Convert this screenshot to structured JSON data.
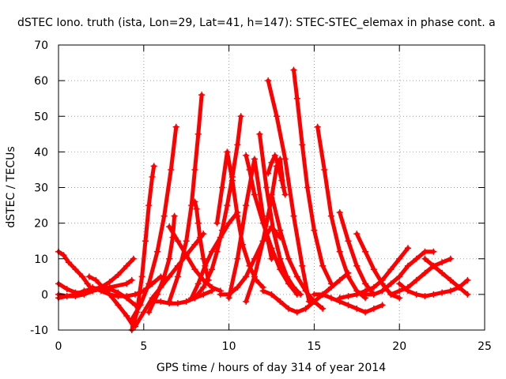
{
  "chart_data": {
    "type": "scatter",
    "title": "dSTEC Iono. truth (ista, Lon=29, Lat=41, h=147): STEC-STEC_elemax in phase cont. a",
    "xlabel": "GPS time / hours of day 314 of year 2014",
    "ylabel": "dSTEC  / TECUs",
    "xlim": [
      0,
      25
    ],
    "ylim": [
      -10,
      70
    ],
    "xticks": [
      "0",
      "5",
      "10",
      "15",
      "20",
      "25"
    ],
    "yticks": [
      "-10",
      "0",
      "10",
      "20",
      "30",
      "40",
      "50",
      "60",
      "70"
    ],
    "grid": true,
    "marker": "+",
    "color": "#ff0000",
    "series": [
      {
        "x": [
          0.0,
          0.3,
          0.6,
          1.0,
          1.4,
          1.7,
          2.0
        ],
        "y": [
          12,
          11,
          9,
          7,
          5,
          3,
          1
        ]
      },
      {
        "x": [
          0.0,
          0.5,
          1.0,
          1.5,
          2.0,
          2.5,
          3.0,
          3.5,
          4.0,
          4.4
        ],
        "y": [
          3,
          1.5,
          0.5,
          0.5,
          1,
          2,
          3.5,
          5.5,
          8,
          10
        ]
      },
      {
        "x": [
          0.0,
          0.5,
          1.0,
          1.5,
          2.0,
          2.5,
          3.0,
          3.5,
          4.0,
          4.5
        ],
        "y": [
          -1,
          -0.5,
          0,
          1,
          1.5,
          2,
          1.5,
          0.5,
          -1,
          -3
        ]
      },
      {
        "x": [
          0.0,
          0.5,
          1.0,
          1.5,
          2.0,
          3.0,
          4.0,
          4.3
        ],
        "y": [
          0,
          -0.5,
          -0.5,
          0,
          1,
          2,
          3,
          4
        ]
      },
      {
        "x": [
          1.8,
          2.2,
          2.6,
          3.0,
          3.5,
          4.0,
          4.4
        ],
        "y": [
          5,
          4,
          2,
          0,
          -3,
          -6,
          -9
        ]
      },
      {
        "x": [
          2.0,
          2.5,
          3.0,
          3.5,
          4.0,
          4.5,
          5.0,
          5.5,
          6.0
        ],
        "y": [
          2,
          1,
          0,
          -0.5,
          -0.5,
          0,
          1,
          3,
          5
        ]
      },
      {
        "x": [
          4.3,
          4.6,
          4.9,
          5.1,
          5.3,
          5.5,
          5.6
        ],
        "y": [
          -10,
          -5,
          5,
          15,
          25,
          33,
          36
        ]
      },
      {
        "x": [
          4.5,
          5.0,
          5.5,
          6.0,
          6.5,
          7.0,
          7.5,
          8.0,
          8.5
        ],
        "y": [
          -9,
          -5,
          -1,
          2,
          5,
          8,
          11,
          14,
          17
        ]
      },
      {
        "x": [
          4.3,
          4.8,
          5.3,
          5.8,
          6.2,
          6.6,
          6.9
        ],
        "y": [
          -7,
          -3,
          3,
          12,
          22,
          35,
          47
        ]
      },
      {
        "x": [
          5.3,
          5.8,
          6.2,
          6.5,
          6.7,
          6.8
        ],
        "y": [
          -5,
          0,
          5,
          10,
          16,
          22
        ]
      },
      {
        "x": [
          6.5,
          7.0,
          7.5,
          8.0,
          8.5,
          9.0,
          9.5
        ],
        "y": [
          19,
          15,
          11,
          7,
          4,
          2,
          1
        ]
      },
      {
        "x": [
          5.5,
          6.0,
          6.5,
          7.0,
          7.5,
          8.0,
          8.5,
          9.0
        ],
        "y": [
          -2,
          -2,
          -2.5,
          -2.5,
          -2,
          -1,
          0,
          1
        ]
      },
      {
        "x": [
          6.5,
          7.0,
          7.5,
          7.8,
          8.0,
          8.2,
          8.4
        ],
        "y": [
          -2,
          5,
          15,
          25,
          35,
          45,
          56
        ]
      },
      {
        "x": [
          8.0,
          8.1,
          8.2,
          8.3,
          8.5,
          8.8
        ],
        "y": [
          26,
          24,
          20,
          16,
          10,
          4
        ]
      },
      {
        "x": [
          7.8,
          8.2,
          8.6,
          9.0,
          9.5,
          10.0,
          10.5
        ],
        "y": [
          -1,
          3,
          8,
          12,
          16,
          20,
          23
        ]
      },
      {
        "x": [
          8.0,
          8.5,
          9.0,
          9.3,
          9.6,
          9.9,
          10.2,
          10.5,
          10.7
        ],
        "y": [
          -1,
          2,
          7,
          12,
          18,
          25,
          33,
          42,
          50
        ]
      },
      {
        "x": [
          9.3,
          9.6,
          9.9,
          10.2,
          10.5,
          10.8,
          11.2,
          11.6,
          12.0
        ],
        "y": [
          20,
          30,
          40,
          32,
          22,
          14,
          8,
          4,
          2
        ]
      },
      {
        "x": [
          9.5,
          10.0,
          10.5,
          11.0,
          11.5,
          12.0,
          12.5,
          13.0
        ],
        "y": [
          0,
          0,
          2,
          5,
          10,
          15,
          19,
          16
        ]
      },
      {
        "x": [
          10.0,
          10.5,
          11.0,
          11.5,
          12.0,
          12.5
        ],
        "y": [
          -1,
          10,
          25,
          38,
          22,
          10
        ]
      },
      {
        "x": [
          11.0,
          11.2,
          11.5,
          12.0,
          12.5,
          13.0,
          13.5,
          14.0
        ],
        "y": [
          39,
          35,
          28,
          20,
          13,
          7,
          3,
          0
        ]
      },
      {
        "x": [
          11.8,
          12.2,
          12.6,
          13.0,
          13.4,
          13.8,
          14.2
        ],
        "y": [
          45,
          30,
          18,
          10,
          5,
          2,
          0
        ]
      },
      {
        "x": [
          11.0,
          11.5,
          12.0,
          12.5,
          12.8,
          13.0,
          13.2
        ],
        "y": [
          -2,
          5,
          15,
          27,
          36,
          38,
          30
        ]
      },
      {
        "x": [
          12.3,
          12.5,
          12.7,
          12.9,
          13.1,
          13.3
        ],
        "y": [
          34,
          37,
          39,
          36,
          32,
          28
        ]
      },
      {
        "x": [
          12.5,
          13.0,
          13.5,
          14.0,
          14.5,
          15.0,
          15.5
        ],
        "y": [
          28,
          18,
          10,
          5,
          1,
          -2,
          -4
        ]
      },
      {
        "x": [
          12.3,
          12.8,
          13.3,
          13.8,
          14.3,
          14.7
        ],
        "y": [
          60,
          50,
          38,
          22,
          8,
          -2
        ]
      },
      {
        "x": [
          13.8,
          14.0,
          14.3,
          14.6,
          15.0,
          15.5,
          16.0
        ],
        "y": [
          63,
          55,
          42,
          30,
          18,
          8,
          3
        ]
      },
      {
        "x": [
          12.0,
          12.5,
          13.0,
          13.5,
          14.0,
          14.5,
          15.0,
          15.5,
          16.0,
          16.5,
          17.0
        ],
        "y": [
          1,
          0,
          -2,
          -4,
          -5,
          -4,
          -2,
          0,
          2,
          4,
          6
        ]
      },
      {
        "x": [
          15.2,
          15.6,
          16.0,
          16.5,
          17.0,
          17.5,
          18.0
        ],
        "y": [
          47,
          35,
          22,
          12,
          5,
          1,
          -1
        ]
      },
      {
        "x": [
          15.0,
          15.5,
          16.0,
          16.5,
          17.0,
          17.5,
          18.0,
          18.5,
          19.0
        ],
        "y": [
          0,
          0,
          -1,
          -2,
          -3,
          -4,
          -5,
          -4,
          -3
        ]
      },
      {
        "x": [
          16.5,
          17.0,
          17.5,
          18.0,
          18.5
        ],
        "y": [
          23,
          15,
          8,
          3,
          0
        ]
      },
      {
        "x": [
          17.5,
          18.0,
          18.5,
          19.0,
          19.5,
          20.0
        ],
        "y": [
          17,
          12,
          7,
          3,
          0,
          -1
        ]
      },
      {
        "x": [
          16.5,
          17.0,
          17.5,
          18.0,
          18.5,
          19.0,
          19.5,
          20.0,
          20.5
        ],
        "y": [
          -1,
          -0.5,
          0,
          1,
          2,
          4,
          7,
          10,
          13
        ]
      },
      {
        "x": [
          18.0,
          18.5,
          19.0,
          19.5,
          20.0,
          20.5,
          21.0,
          21.5,
          22.0
        ],
        "y": [
          0,
          0,
          1,
          3,
          5,
          8,
          10,
          12,
          12
        ]
      },
      {
        "x": [
          19.5,
          20.0,
          20.5,
          21.0,
          21.5,
          22.0,
          22.5,
          23.0
        ],
        "y": [
          0,
          1,
          2,
          4,
          6,
          8,
          9,
          10
        ]
      },
      {
        "x": [
          20.0,
          20.5,
          21.0,
          21.5,
          22.0,
          22.5,
          23.0,
          23.5,
          24.0
        ],
        "y": [
          3,
          1,
          0,
          -0.5,
          0,
          0.5,
          1,
          2,
          4
        ]
      },
      {
        "x": [
          21.5,
          22.0,
          22.5,
          23.0,
          23.5,
          24.0
        ],
        "y": [
          10,
          8,
          6,
          4,
          2,
          0
        ]
      }
    ]
  }
}
